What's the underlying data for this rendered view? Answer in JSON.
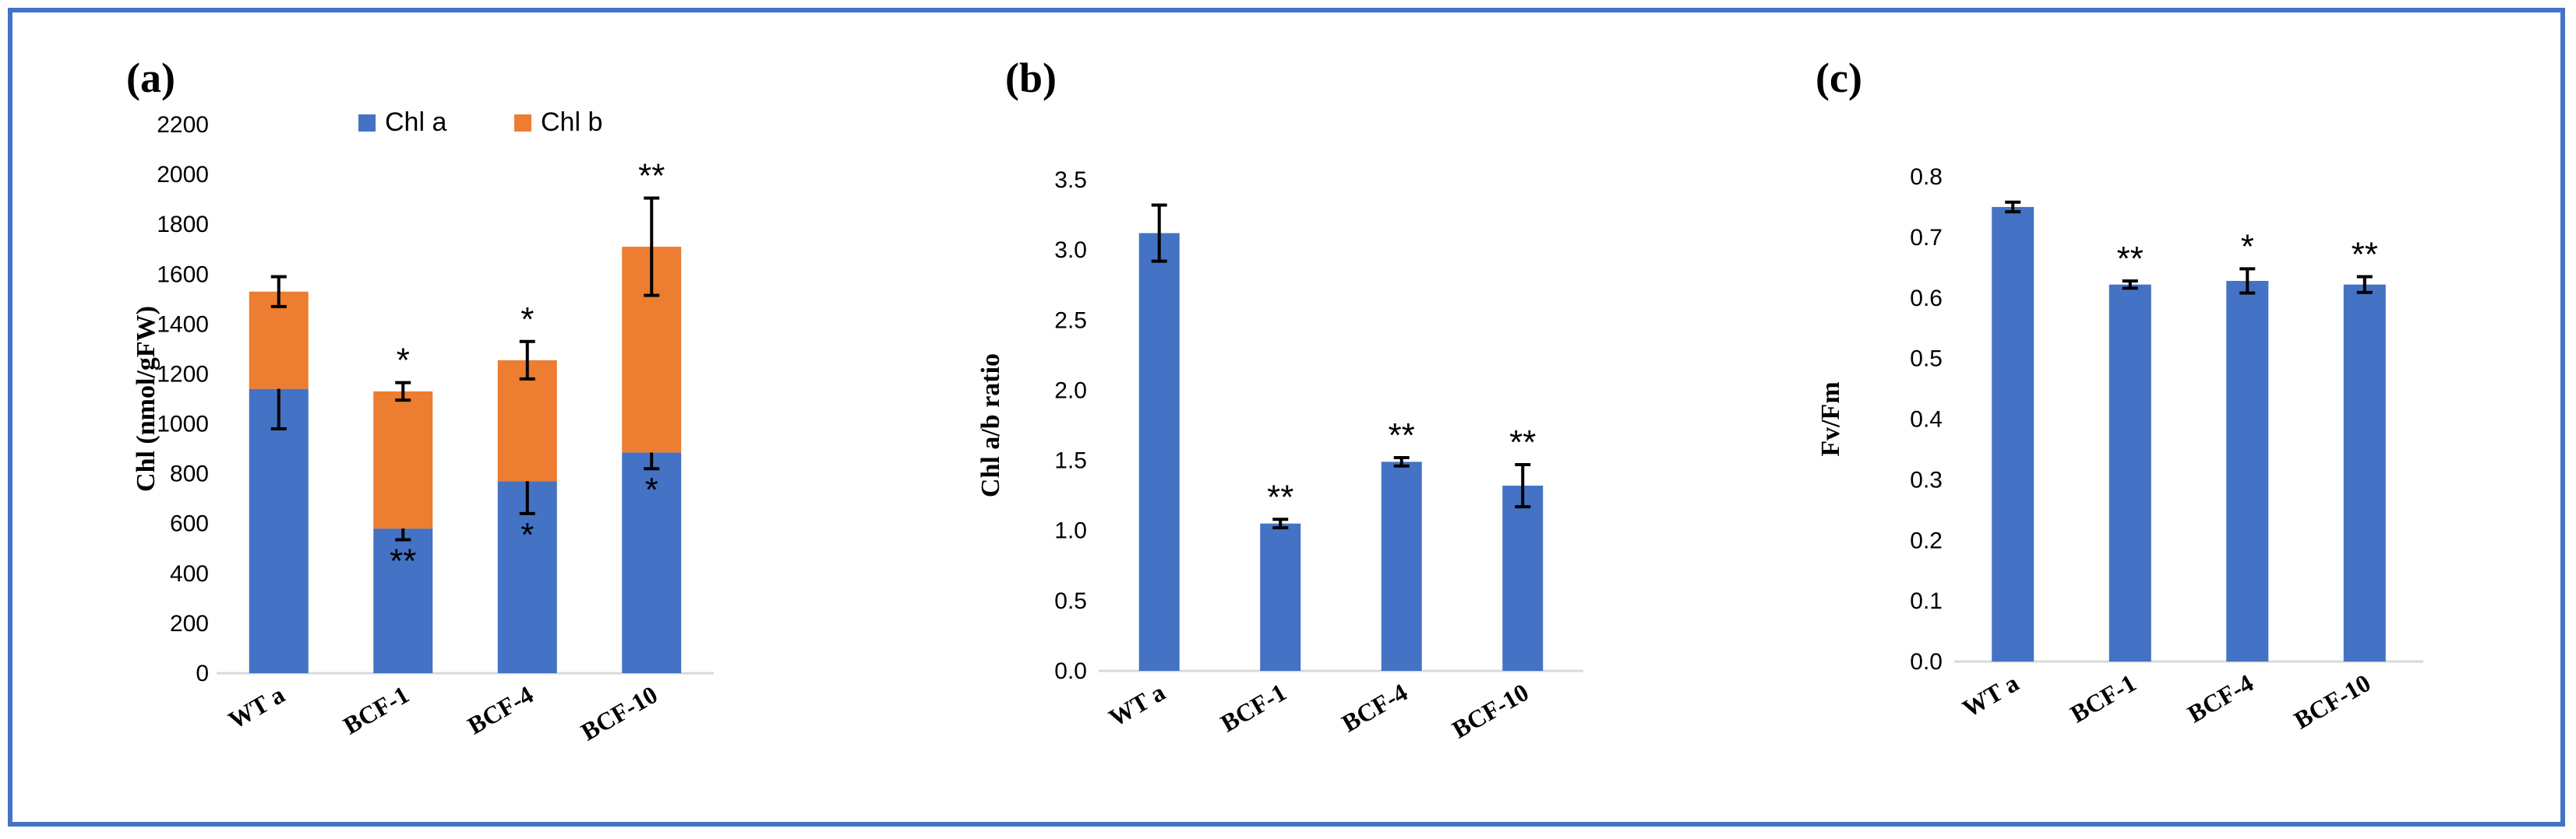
{
  "colors": {
    "chl_a": "#4472c4",
    "chl_b": "#ed7d31",
    "frame": "#4472c4",
    "axis": "#d9d9d9",
    "text": "#000000"
  },
  "chart_data": [
    {
      "panel_label": "(a)",
      "type": "bar",
      "stacked": true,
      "categories": [
        "WT a",
        "BCF-1",
        "BCF-4",
        "BCF-10"
      ],
      "ylabel": "Chl (nmol/gFW)",
      "ylim": [
        0,
        2200
      ],
      "yticks": [
        "0",
        "200",
        "400",
        "600",
        "800",
        "1000",
        "1200",
        "1400",
        "1600",
        "1800",
        "2000",
        "2200"
      ],
      "legend": "top",
      "series": [
        {
          "name": "Chl a",
          "values": [
            1140,
            580,
            770,
            885
          ],
          "errors": [
            160,
            45,
            130,
            65
          ],
          "annotations": [
            "",
            "**",
            "*",
            "*"
          ]
        },
        {
          "name": "Chl b",
          "values": [
            390,
            550,
            485,
            825
          ],
          "errors": [
            60,
            35,
            75,
            195
          ],
          "annotations": [
            "",
            "*",
            "*",
            "**"
          ]
        }
      ]
    },
    {
      "panel_label": "(b)",
      "type": "bar",
      "categories": [
        "WT a",
        "BCF-1",
        "BCF-4",
        "BCF-10"
      ],
      "ylabel": "Chl a/b ratio",
      "ylim": [
        0,
        3.5
      ],
      "yticks": [
        "0.0",
        "0.5",
        "1.0",
        "1.5",
        "2.0",
        "2.5",
        "3.0",
        "3.5"
      ],
      "series": [
        {
          "values": [
            3.12,
            1.05,
            1.49,
            1.32
          ],
          "errors": [
            0.2,
            0.03,
            0.03,
            0.15
          ],
          "annotations": [
            "",
            "**",
            "**",
            "**"
          ]
        }
      ]
    },
    {
      "panel_label": "(c)",
      "type": "bar",
      "categories": [
        "WT a",
        "BCF-1",
        "BCF-4",
        "BCF-10"
      ],
      "ylabel": "Fv/Fm",
      "ylim": [
        0,
        0.8
      ],
      "yticks": [
        "0.0",
        "0.1",
        "0.2",
        "0.3",
        "0.4",
        "0.5",
        "0.6",
        "0.7",
        "0.8"
      ],
      "series": [
        {
          "values": [
            0.75,
            0.622,
            0.628,
            0.622
          ],
          "errors": [
            0.008,
            0.006,
            0.02,
            0.013
          ],
          "annotations": [
            "",
            "**",
            "*",
            "**"
          ]
        }
      ]
    }
  ]
}
